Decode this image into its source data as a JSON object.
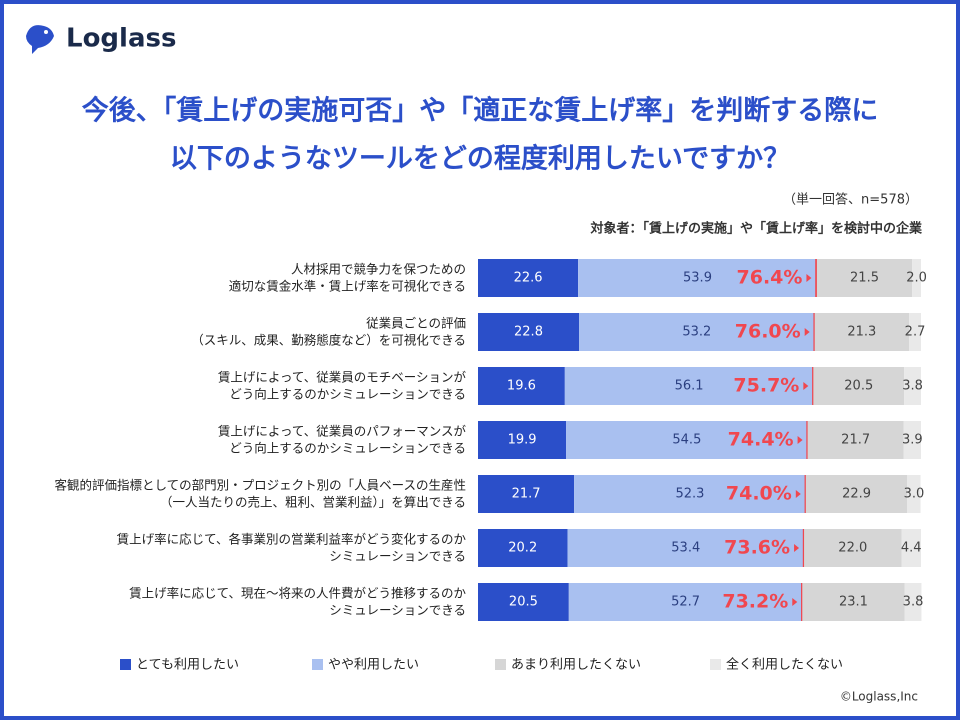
{
  "brand": "Loglass",
  "copyright": "©Loglass,Inc",
  "chart_data": {
    "type": "stacked-bar-horizontal",
    "title": [
      "今後、「賃上げの実施可否」や「適正な賃上げ率」を判断する際に",
      "以下のようなツールをどの程度利用したいですか？"
    ],
    "note": "（単一回答、n=578）",
    "subtitle": "対象者：「賃上げの実施」や「賃上げ率」を検討中の企業",
    "categories": [
      "人材採用で競争力を保つための\n適切な賃金水準・賃上げ率を可視化できる",
      "従業員ごとの評価\n（スキル、成果、勤務態度など）を可視化できる",
      "賃上げによって、従業員のモチベーションが\nどう向上するのかシミュレーションできる",
      "賃上げによって、従業員のパフォーマンスが\nどう向上するのかシミュレーションできる",
      "客観的評価指標としての部門別・プロジェクト別の「人員ベースの生産性\n（一人当たりの売上、粗利、営業利益）」を算出できる",
      "賃上げ率に応じて、各事業別の営業利益率がどう変化するのか\nシミュレーションできる",
      "賃上げ率に応じて、現在～将来の人件費がどう推移するのか\nシミュレーションできる"
    ],
    "series": [
      {
        "name": "とても利用したい",
        "color": "#2b4fc9",
        "values": [
          22.6,
          22.8,
          19.6,
          19.9,
          21.7,
          20.2,
          20.5
        ]
      },
      {
        "name": "やや利用したい",
        "color": "#a9c0f0",
        "values": [
          53.9,
          53.2,
          56.1,
          54.5,
          52.3,
          53.4,
          52.7
        ]
      },
      {
        "name": "あまり利用したくない",
        "color": "#d6d6d6",
        "values": [
          21.5,
          21.3,
          20.5,
          21.7,
          22.9,
          22.0,
          23.1
        ],
        "value_labels": [
          "21.5",
          "21.3",
          "20.5",
          "21.7",
          "22.9",
          "22.0",
          "23.1"
        ]
      },
      {
        "name": "全く利用したくない",
        "color": "#e9e9e9",
        "values": [
          2,
          2.7,
          3.8,
          3.9,
          3,
          4.4,
          3.8
        ],
        "value_labels": [
          "2.0",
          "2.7",
          "3.8",
          "3.9",
          "3.0",
          "4.4",
          "3.8"
        ]
      }
    ],
    "combined": {
      "values": [
        76.4,
        76.0,
        75.7,
        74.4,
        74.0,
        73.6,
        73.2
      ],
      "value_labels": [
        "76.4%",
        "76.0%",
        "75.7%",
        "74.4%",
        "74.0%",
        "73.6%",
        "73.2%"
      ],
      "color": "#f0474f"
    },
    "xlim": [
      0,
      100
    ]
  }
}
